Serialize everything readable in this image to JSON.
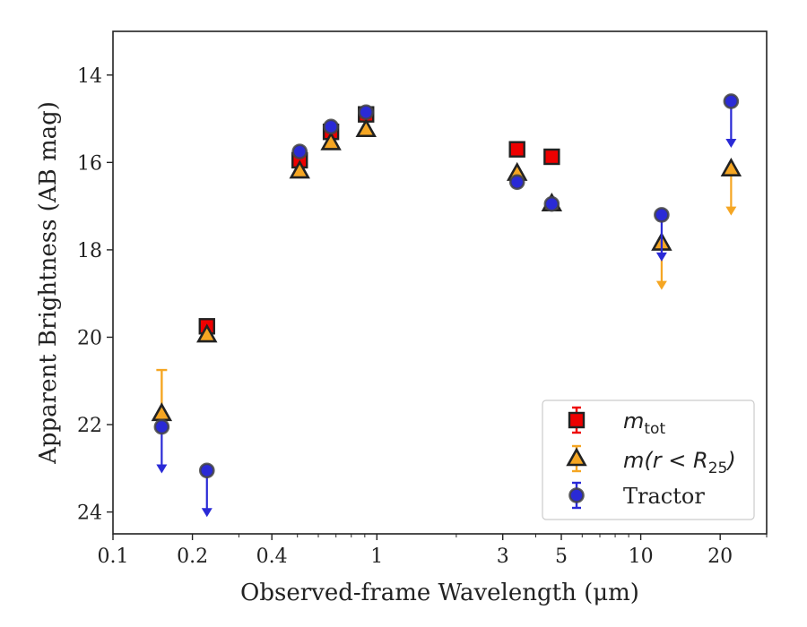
{
  "chart_data": {
    "type": "scatter",
    "xlabel": "Observed-frame Wavelength (μm)",
    "ylabel": "Apparent Brightness (AB mag)",
    "xscale": "log",
    "xlim": [
      0.1,
      30
    ],
    "ylim": [
      24.5,
      13
    ],
    "y_inverted": true,
    "grid": false,
    "legend_location": "lower-right",
    "x_ticks": [
      {
        "value": 0.1,
        "label": "0.1"
      },
      {
        "value": 0.2,
        "label": "0.2"
      },
      {
        "value": 0.4,
        "label": "0.4"
      },
      {
        "value": 1,
        "label": "1"
      },
      {
        "value": 3,
        "label": "3"
      },
      {
        "value": 5,
        "label": "5"
      },
      {
        "value": 10,
        "label": "10"
      },
      {
        "value": 20,
        "label": "20"
      }
    ],
    "y_ticks": [
      {
        "value": 14,
        "label": "14"
      },
      {
        "value": 16,
        "label": "16"
      },
      {
        "value": 18,
        "label": "18"
      },
      {
        "value": 20,
        "label": "20"
      },
      {
        "value": 22,
        "label": "22"
      },
      {
        "value": 24,
        "label": "24"
      }
    ],
    "series": [
      {
        "name": "m_tot",
        "marker": "square",
        "color": "#ee0000",
        "edge_color": "#222222",
        "points": [
          {
            "x": 0.227,
            "y": 19.75
          },
          {
            "x": 0.51,
            "y": 15.95
          },
          {
            "x": 0.67,
            "y": 15.3
          },
          {
            "x": 0.91,
            "y": 14.9
          },
          {
            "x": 3.4,
            "y": 15.7
          },
          {
            "x": 4.6,
            "y": 15.87
          }
        ]
      },
      {
        "name": "m(r<R25)",
        "marker": "triangle",
        "color": "#f5a623",
        "edge_color": "#222222",
        "points": [
          {
            "x": 0.153,
            "y": 21.75,
            "err_up": 1.0
          },
          {
            "x": 0.227,
            "y": 19.95
          },
          {
            "x": 0.51,
            "y": 16.2
          },
          {
            "x": 0.67,
            "y": 15.55
          },
          {
            "x": 0.91,
            "y": 15.25
          },
          {
            "x": 3.4,
            "y": 16.25
          },
          {
            "x": 4.6,
            "y": 16.95
          },
          {
            "x": 12.0,
            "y": 17.85,
            "upper_limit": true
          },
          {
            "x": 22.0,
            "y": 16.15,
            "upper_limit": true
          }
        ]
      },
      {
        "name": "Tractor",
        "marker": "circle",
        "color": "#2a2ad6",
        "edge_color": "#444444",
        "points": [
          {
            "x": 0.153,
            "y": 22.05,
            "upper_limit": true
          },
          {
            "x": 0.227,
            "y": 23.05,
            "upper_limit": true
          },
          {
            "x": 0.51,
            "y": 15.75
          },
          {
            "x": 0.67,
            "y": 15.18
          },
          {
            "x": 0.91,
            "y": 14.85
          },
          {
            "x": 3.4,
            "y": 16.45
          },
          {
            "x": 4.6,
            "y": 16.95
          },
          {
            "x": 12.0,
            "y": 17.2,
            "upper_limit": true
          },
          {
            "x": 22.0,
            "y": 14.6,
            "upper_limit": true
          }
        ]
      }
    ]
  },
  "legend": {
    "m_tot": {
      "main": "m",
      "sub": "tot"
    },
    "m_r25": {
      "prefix": "m(",
      "var": "r",
      "lt": " < ",
      "R": "R",
      "sub": "25",
      "suffix": ")"
    },
    "tractor": "Tractor"
  }
}
